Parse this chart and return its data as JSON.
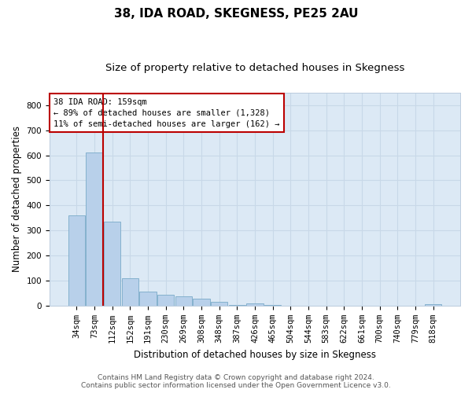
{
  "title": "38, IDA ROAD, SKEGNESS, PE25 2AU",
  "subtitle": "Size of property relative to detached houses in Skegness",
  "xlabel": "Distribution of detached houses by size in Skegness",
  "ylabel": "Number of detached properties",
  "categories": [
    "34sqm",
    "73sqm",
    "112sqm",
    "152sqm",
    "191sqm",
    "230sqm",
    "269sqm",
    "308sqm",
    "348sqm",
    "387sqm",
    "426sqm",
    "465sqm",
    "504sqm",
    "544sqm",
    "583sqm",
    "622sqm",
    "661sqm",
    "700sqm",
    "740sqm",
    "779sqm",
    "818sqm"
  ],
  "values": [
    360,
    610,
    335,
    110,
    55,
    45,
    38,
    28,
    15,
    3,
    10,
    3,
    0,
    0,
    0,
    0,
    0,
    0,
    0,
    0,
    5
  ],
  "bar_color": "#b8d0ea",
  "bar_edge_color": "#7aaac8",
  "bg_color": "#dce9f5",
  "grid_color": "#c8d8e8",
  "vline_color": "#bb0000",
  "annotation_text": "38 IDA ROAD: 159sqm\n← 89% of detached houses are smaller (1,328)\n11% of semi-detached houses are larger (162) →",
  "annotation_box_color": "#ffffff",
  "annotation_box_edge": "#bb0000",
  "footer_line1": "Contains HM Land Registry data © Crown copyright and database right 2024.",
  "footer_line2": "Contains public sector information licensed under the Open Government Licence v3.0.",
  "ylim": [
    0,
    850
  ],
  "yticks": [
    0,
    100,
    200,
    300,
    400,
    500,
    600,
    700,
    800
  ],
  "title_fontsize": 11,
  "subtitle_fontsize": 9.5,
  "axis_label_fontsize": 8.5,
  "tick_fontsize": 7.5,
  "annotation_fontsize": 7.5,
  "footer_fontsize": 6.5,
  "vline_pos": 1.5
}
